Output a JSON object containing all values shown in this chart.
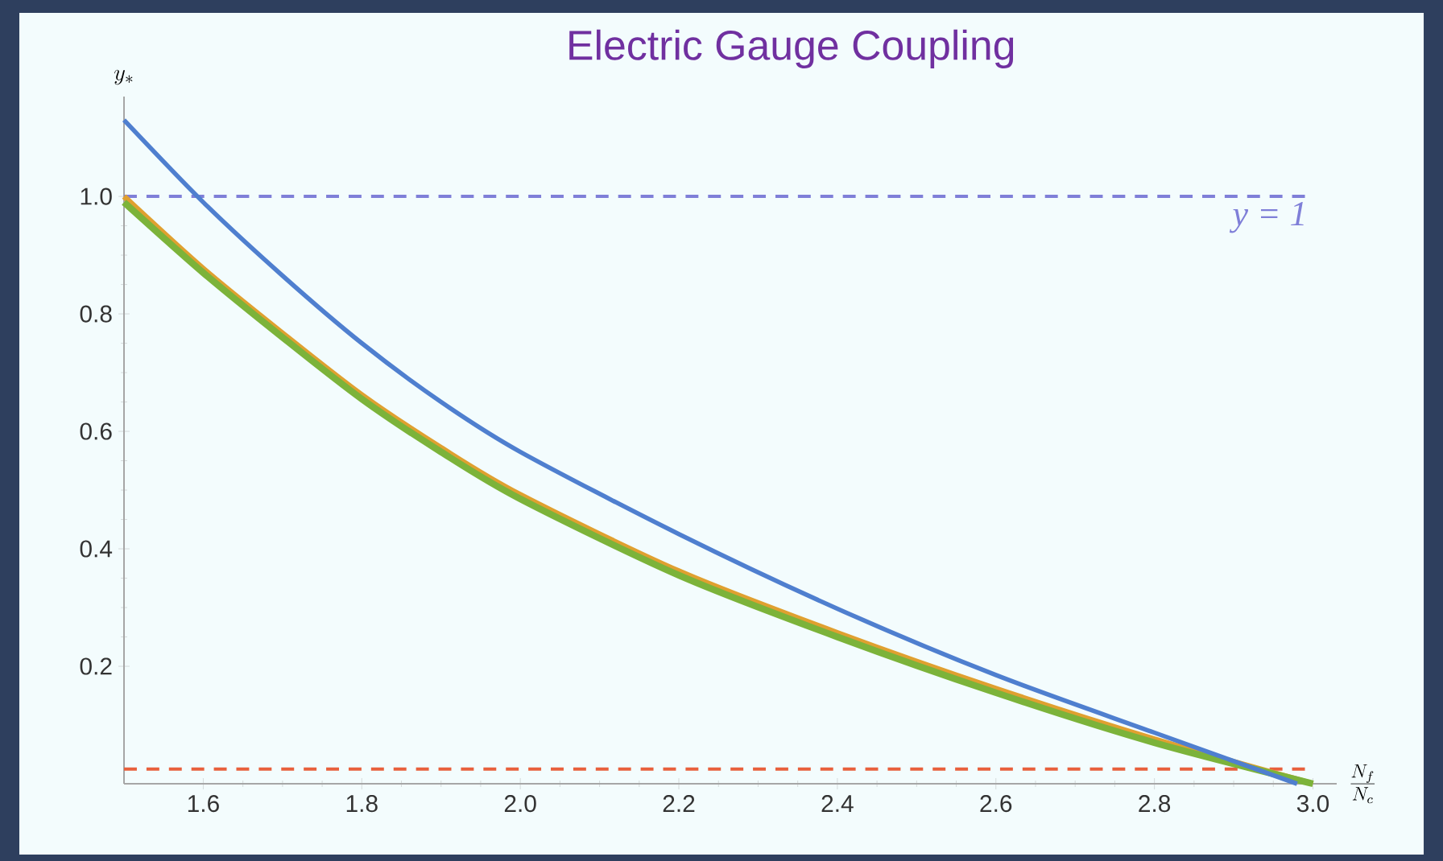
{
  "chart_data": {
    "type": "line",
    "title": "Electric Gauge Coupling",
    "xlabel": "\\frac{N_f}{N_c}",
    "ylabel": "y_*",
    "xlim": [
      1.5,
      3.03
    ],
    "ylim": [
      0,
      1.17
    ],
    "xticks": [
      1.6,
      1.8,
      {
        "value": 2.0,
        "label": "2.0"
      },
      2.2,
      2.4,
      2.6,
      2.8,
      {
        "value": 3.0,
        "label": "3.0"
      }
    ],
    "yticks": [
      0.2,
      0.4,
      0.6,
      0.8,
      {
        "value": 1.0,
        "label": "1.0"
      }
    ],
    "grid": false,
    "marker": "none",
    "line_style": "solid",
    "series": [
      {
        "color": "#e0a030",
        "x": [
          1.5,
          1.6,
          1.7,
          1.8,
          1.9,
          2.0,
          2.2,
          2.4,
          2.6,
          2.8,
          3.0
        ],
        "values": [
          1.0,
          0.877,
          0.767,
          0.662,
          0.572,
          0.492,
          0.362,
          0.257,
          0.162,
          0.076,
          0.0
        ]
      },
      {
        "color": "#7cb33a",
        "x": [
          1.5,
          1.6,
          1.7,
          1.8,
          1.9,
          2.0,
          2.2,
          2.4,
          2.6,
          2.8,
          3.0
        ],
        "values": [
          0.99,
          0.87,
          0.76,
          0.655,
          0.565,
          0.485,
          0.355,
          0.25,
          0.155,
          0.07,
          0.0
        ]
      },
      {
        "color": "#4f7fcf",
        "x": [
          1.5,
          1.6,
          1.7,
          1.8,
          1.9,
          2.0,
          2.2,
          2.4,
          2.6,
          2.8,
          2.98
        ],
        "values": [
          1.13,
          0.99,
          0.865,
          0.75,
          0.65,
          0.565,
          0.425,
          0.298,
          0.185,
          0.087,
          0.0
        ]
      }
    ],
    "ref_lines": [
      {
        "axis": "y",
        "value": 1.0,
        "label": "y = 1",
        "color": "#7f7fd8",
        "line_style": "dashed"
      },
      {
        "axis": "y",
        "value": 0.025,
        "color": "#e8603c",
        "line_style": "dashed"
      }
    ]
  }
}
